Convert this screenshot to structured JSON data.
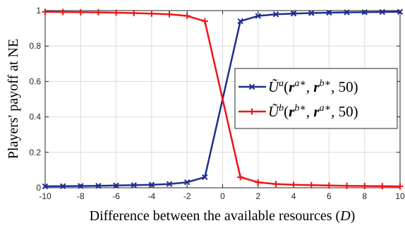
{
  "chart_data": {
    "type": "line",
    "xlabel": "Difference between the available resources (D)",
    "ylabel": "Players' payoff at NE",
    "xlim": [
      -10,
      10
    ],
    "ylim": [
      0,
      1
    ],
    "x_ticks": [
      "-10",
      "-8",
      "-6",
      "-4",
      "-2",
      "0",
      "2",
      "4",
      "6",
      "8",
      "10"
    ],
    "y_ticks": [
      "0",
      "0.2",
      "0.4",
      "0.6",
      "0.8",
      "1"
    ],
    "grid": true,
    "legend_position": "right",
    "x": [
      -10,
      -9,
      -8,
      -7,
      -6,
      -5,
      -4,
      -3,
      -2,
      -1,
      1,
      2,
      3,
      4,
      5,
      6,
      7,
      8,
      9,
      10
    ],
    "series": [
      {
        "name": "Ũ^a(r^{a*}, r^{b*}, 50)",
        "color": "#1f2f8f",
        "marker": "x",
        "values": [
          0.008,
          0.009,
          0.01,
          0.011,
          0.013,
          0.015,
          0.017,
          0.021,
          0.031,
          0.06,
          0.94,
          0.97,
          0.979,
          0.983,
          0.986,
          0.988,
          0.99,
          0.991,
          0.992,
          0.993
        ]
      },
      {
        "name": "Ũ^b(r^{b*}, r^{a*}, 50)",
        "color": "#f01414",
        "marker": "+",
        "values": [
          0.993,
          0.992,
          0.991,
          0.99,
          0.988,
          0.986,
          0.983,
          0.979,
          0.97,
          0.94,
          0.06,
          0.031,
          0.021,
          0.017,
          0.015,
          0.013,
          0.011,
          0.01,
          0.009,
          0.008
        ]
      }
    ]
  }
}
